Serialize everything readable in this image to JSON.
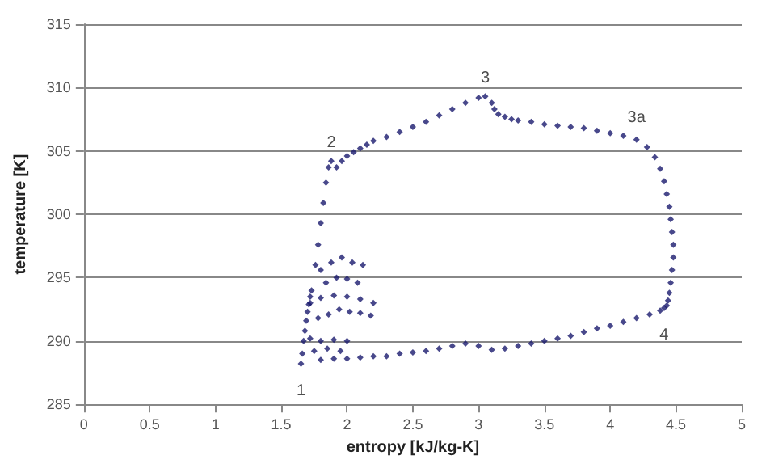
{
  "chart_data": {
    "type": "scatter",
    "xlabel": "entropy [kJ/kg-K]",
    "ylabel": "temperature [K]",
    "xlim": [
      0,
      5
    ],
    "xticks": [
      0,
      0.5,
      1,
      1.5,
      2,
      2.5,
      3,
      3.5,
      4,
      4.5,
      5
    ],
    "ylim": [
      285,
      315
    ],
    "yticks": [
      285,
      290,
      295,
      300,
      305,
      310,
      315
    ],
    "grid": "y",
    "marker": "diamond",
    "annotations": [
      {
        "text": "1",
        "x": 1.65,
        "y": 288.2
      },
      {
        "text": "2",
        "x": 1.88,
        "y": 304.2
      },
      {
        "text": "3",
        "x": 3.05,
        "y": 309.3
      },
      {
        "text": "3a",
        "x": 4.2,
        "y": 306.2
      },
      {
        "text": "4",
        "x": 4.41,
        "y": 292.6
      }
    ],
    "series": [
      {
        "color": "#1a1a6e",
        "x": [
          1.65,
          1.66,
          1.67,
          1.68,
          1.69,
          1.7,
          1.71,
          1.72,
          1.73,
          1.76,
          1.78,
          1.8,
          1.82,
          1.84,
          1.86,
          1.88,
          1.92,
          1.96,
          2.0,
          2.05,
          2.1,
          2.15,
          2.2,
          2.3,
          2.4,
          2.5,
          2.6,
          2.7,
          2.8,
          2.9,
          3.0,
          3.05,
          3.1,
          3.12,
          3.15,
          3.2,
          3.25,
          3.3,
          3.4,
          3.5,
          3.6,
          3.7,
          3.8,
          3.9,
          4.0,
          4.1,
          4.2,
          4.28,
          4.34,
          4.38,
          4.41,
          4.43,
          4.45,
          4.46,
          4.47,
          4.48,
          4.48,
          4.47,
          4.46,
          4.45,
          4.44,
          4.43,
          4.41,
          4.38,
          4.3,
          4.2,
          4.1,
          4.0,
          3.9,
          3.8,
          3.7,
          3.6,
          3.5,
          3.4,
          3.3,
          3.2,
          3.1,
          3.0,
          2.9,
          2.8,
          2.7,
          2.6,
          2.5,
          2.4,
          2.3,
          2.2,
          2.1,
          2.0,
          1.9,
          1.8,
          1.72,
          1.8,
          1.9,
          2.0,
          1.75,
          1.85,
          1.95,
          1.72,
          1.8,
          1.9,
          2.0,
          2.1,
          2.2,
          1.78,
          1.86,
          1.94,
          2.02,
          2.1,
          2.18,
          1.8,
          1.88,
          1.96,
          2.04,
          2.12,
          1.84,
          1.92,
          2.0,
          2.08
        ],
        "values": [
          288.2,
          289,
          290,
          290.8,
          291.6,
          292.3,
          292.9,
          293.5,
          294,
          296,
          297.6,
          299.3,
          300.9,
          302.5,
          303.7,
          304.2,
          303.7,
          304.2,
          304.6,
          304.9,
          305.2,
          305.5,
          305.8,
          306.1,
          306.5,
          306.9,
          307.3,
          307.8,
          308.3,
          308.8,
          309.2,
          309.3,
          308.8,
          308.3,
          307.9,
          307.7,
          307.5,
          307.4,
          307.3,
          307.1,
          307,
          306.9,
          306.8,
          306.6,
          306.4,
          306.2,
          305.9,
          305.3,
          304.5,
          303.6,
          302.6,
          301.6,
          300.6,
          299.6,
          298.6,
          297.6,
          296.6,
          295.6,
          294.6,
          293.8,
          293.2,
          292.8,
          292.6,
          292.4,
          292.1,
          291.8,
          291.5,
          291.2,
          291,
          290.7,
          290.4,
          290.2,
          290,
          289.8,
          289.6,
          289.4,
          289.3,
          289.6,
          289.8,
          289.6,
          289.4,
          289.2,
          289.1,
          289,
          288.8,
          288.8,
          288.7,
          288.6,
          288.6,
          288.5,
          290.2,
          290,
          290.1,
          290,
          289.2,
          289.4,
          289.2,
          293,
          293.4,
          293.6,
          293.5,
          293.3,
          293,
          291.8,
          292.1,
          292.5,
          292.3,
          292.2,
          292,
          295.6,
          296.2,
          296.6,
          296.2,
          296,
          294.6,
          295,
          294.9,
          294.6
        ]
      }
    ]
  }
}
